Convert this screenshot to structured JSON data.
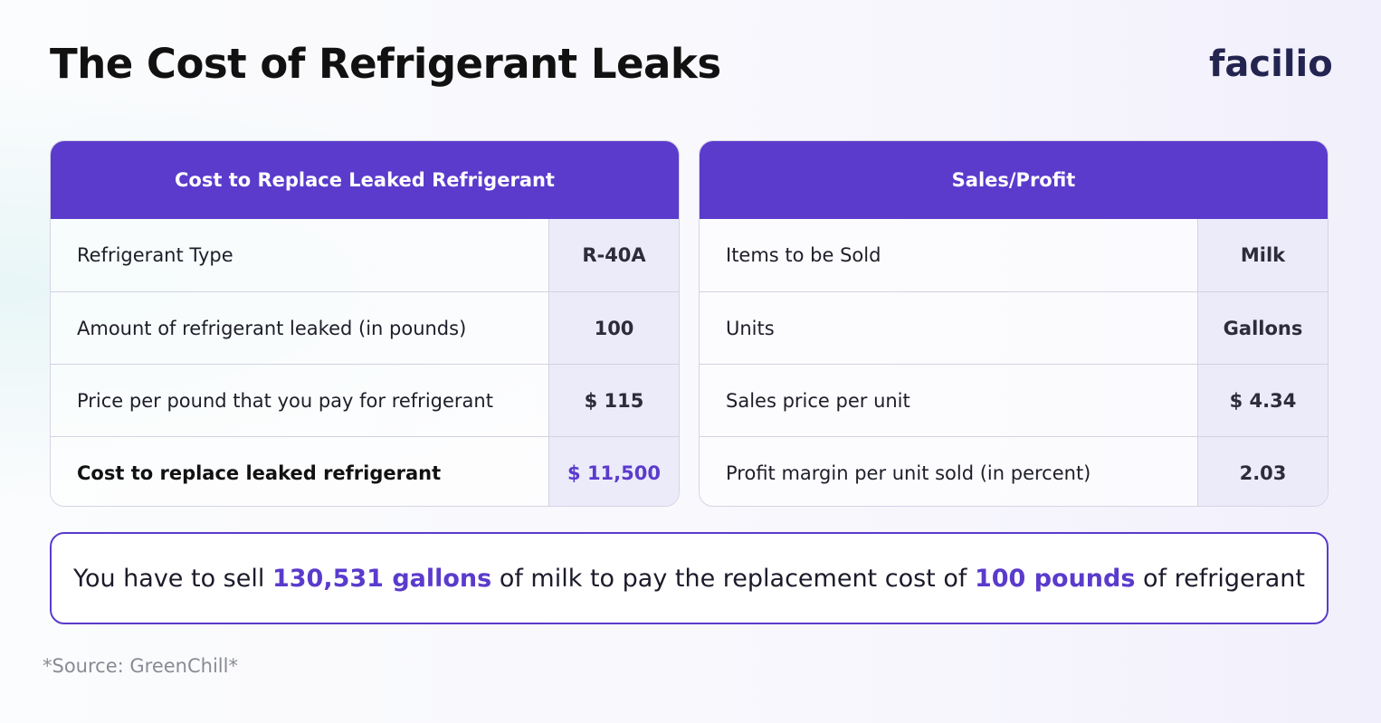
{
  "title": "The Cost of Refrigerant Leaks",
  "logo": "facilio",
  "colors": {
    "accent": "#5a3bcc",
    "logo": "#23244f",
    "value_bg": "#ecebfa"
  },
  "left_table": {
    "header": "Cost to Replace Leaked Refrigerant",
    "rows": [
      {
        "label": "Refrigerant Type",
        "value": "R-40A"
      },
      {
        "label": "Amount of refrigerant leaked (in pounds)",
        "value": "100"
      },
      {
        "label": "Price per pound that you pay for refrigerant",
        "value": "$ 115"
      },
      {
        "label": "Cost to replace leaked refrigerant",
        "value": "$ 11,500"
      }
    ]
  },
  "right_table": {
    "header": "Sales/Profit",
    "rows": [
      {
        "label": "Items to be Sold",
        "value": "Milk"
      },
      {
        "label": "Units",
        "value": "Gallons"
      },
      {
        "label": "Sales price per unit",
        "value": "$ 4.34"
      },
      {
        "label": "Profit margin per unit sold (in percent)",
        "value": "2.03"
      }
    ]
  },
  "banner": {
    "p1": "You have to sell ",
    "h1": "130,531 gallons",
    "p2": " of milk to pay the replacement cost of ",
    "h2": "100 pounds",
    "p3": " of refrigerant"
  },
  "source": "*Source: GreenChill*"
}
